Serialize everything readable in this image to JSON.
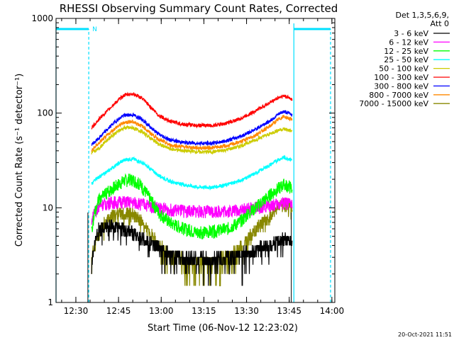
{
  "chart_data": {
    "type": "line",
    "title": "RHESSI Observing Summary Count Rates, Corrected",
    "xlabel": "Start Time (06-Nov-12 12:23:02)",
    "ylabel": "Corrected Count Rate (s⁻¹ detector⁻¹)",
    "yscale": "log",
    "ylim": [
      1,
      1000
    ],
    "xlim_minutes": [
      0,
      98
    ],
    "x_ticks": [
      {
        "label": "12:30",
        "min": 6.97
      },
      {
        "label": "12:45",
        "min": 21.97
      },
      {
        "label": "13:00",
        "min": 36.97
      },
      {
        "label": "13:15",
        "min": 51.97
      },
      {
        "label": "13:30",
        "min": 66.97
      },
      {
        "label": "13:45",
        "min": 81.97
      },
      {
        "label": "14:00",
        "min": 96.97
      }
    ],
    "y_ticks": [
      "1",
      "10",
      "100",
      "1000"
    ],
    "legend_header": [
      "Det 1,3,5,6,9,",
      "Att 0"
    ],
    "legend_position": "right",
    "grid": false,
    "night_marker": "N",
    "series": [
      {
        "name": "3 - 6 keV",
        "color": "#000000",
        "t": [
          12.5,
          15,
          18,
          21,
          24,
          27,
          30,
          33,
          36,
          40,
          45,
          50,
          55,
          60,
          65,
          70,
          75,
          78,
          80,
          82,
          83
        ],
        "y": [
          2.5,
          6.0,
          6.3,
          6.3,
          5.9,
          5.4,
          4.9,
          4.3,
          3.8,
          3.3,
          3.0,
          2.9,
          2.9,
          3.0,
          3.2,
          3.6,
          4.1,
          4.4,
          4.6,
          4.6,
          4.5
        ]
      },
      {
        "name": "6 - 12 keV",
        "color": "#ff00ff",
        "t": [
          12.5,
          15,
          18,
          21,
          24,
          27,
          30,
          33,
          36,
          40,
          45,
          50,
          55,
          60,
          65,
          70,
          75,
          78,
          80,
          82,
          83
        ],
        "y": [
          7.5,
          10.5,
          11.2,
          11.5,
          11.5,
          11.3,
          11.0,
          10.5,
          10.0,
          9.6,
          9.3,
          9.2,
          9.2,
          9.3,
          9.5,
          10.0,
          10.6,
          11.0,
          11.2,
          11.0,
          10.8
        ]
      },
      {
        "name": "12 - 25 keV",
        "color": "#00ff00",
        "t": [
          12.5,
          15,
          18,
          21,
          24,
          27,
          30,
          33,
          36,
          40,
          45,
          50,
          55,
          60,
          65,
          70,
          75,
          78,
          80,
          82,
          83
        ],
        "y": [
          6.0,
          12.0,
          14.5,
          17.0,
          19.5,
          20.0,
          17.0,
          12.5,
          9.0,
          7.0,
          6.0,
          5.5,
          5.6,
          6.0,
          7.2,
          10.0,
          13.5,
          16.0,
          17.5,
          17.0,
          16.0
        ]
      },
      {
        "name": "25 - 50 keV",
        "color": "#00ffff",
        "t": [
          12.5,
          15,
          18,
          21,
          24,
          27,
          30,
          33,
          36,
          40,
          45,
          50,
          55,
          60,
          65,
          70,
          75,
          78,
          80,
          82,
          83
        ],
        "y": [
          18,
          21,
          24,
          28,
          32,
          33,
          30,
          26,
          22,
          19,
          17.5,
          16.5,
          16.5,
          17.5,
          19.5,
          23,
          28,
          32,
          34,
          33,
          32
        ]
      },
      {
        "name": "50 - 100 keV",
        "color": "#cccc00",
        "t": [
          12.5,
          15,
          18,
          21,
          24,
          27,
          30,
          33,
          36,
          40,
          45,
          50,
          55,
          60,
          65,
          70,
          75,
          78,
          80,
          82,
          83
        ],
        "y": [
          38,
          42,
          52,
          62,
          70,
          70,
          64,
          55,
          47,
          42,
          40,
          39,
          39,
          41,
          45,
          52,
          60,
          66,
          68,
          66,
          64
        ]
      },
      {
        "name": "100 - 300 keV",
        "color": "#ff0000",
        "t": [
          12.5,
          15,
          18,
          21,
          24,
          27,
          30,
          33,
          36,
          40,
          45,
          50,
          55,
          60,
          65,
          70,
          75,
          78,
          80,
          82,
          83
        ],
        "y": [
          70,
          85,
          105,
          130,
          155,
          160,
          145,
          118,
          95,
          82,
          76,
          74,
          74,
          78,
          88,
          105,
          128,
          145,
          152,
          145,
          140
        ]
      },
      {
        "name": "300 - 800 keV",
        "color": "#0000ff",
        "t": [
          12.5,
          15,
          18,
          21,
          24,
          27,
          30,
          33,
          36,
          40,
          45,
          50,
          55,
          60,
          65,
          70,
          75,
          78,
          80,
          82,
          83
        ],
        "y": [
          46,
          54,
          67,
          82,
          95,
          96,
          87,
          72,
          60,
          52,
          49,
          48,
          48,
          51,
          57,
          67,
          82,
          96,
          104,
          100,
          96
        ]
      },
      {
        "name": "800 - 7000 keV",
        "color": "#ff8800",
        "t": [
          12.5,
          15,
          18,
          21,
          24,
          27,
          30,
          33,
          36,
          40,
          45,
          50,
          55,
          60,
          65,
          70,
          75,
          78,
          80,
          82,
          83
        ],
        "y": [
          40,
          48,
          58,
          70,
          80,
          81,
          74,
          62,
          53,
          46,
          44,
          43,
          43,
          45,
          50,
          58,
          72,
          85,
          92,
          88,
          84
        ]
      },
      {
        "name": "7000 - 15000 keV",
        "color": "#888800",
        "t": [
          12.5,
          15,
          18,
          21,
          24,
          27,
          30,
          33,
          36,
          40,
          45,
          50,
          55,
          60,
          65,
          70,
          75,
          78,
          80,
          82,
          83
        ],
        "y": [
          3.0,
          5.5,
          7.5,
          8.5,
          8.8,
          8.5,
          7.2,
          5.4,
          4.0,
          3.2,
          2.8,
          2.7,
          2.7,
          3.0,
          3.8,
          5.8,
          8.2,
          10.0,
          11.0,
          10.5,
          10.0
        ]
      }
    ]
  },
  "footer": {
    "timestamp": "20-Oct-2021 11:51"
  }
}
